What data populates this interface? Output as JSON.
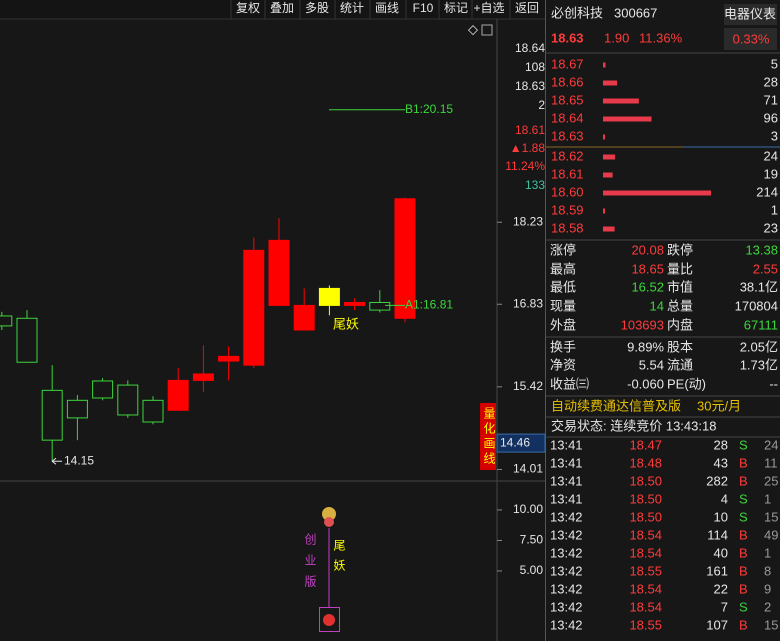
{
  "toolbar": [
    "复权",
    "叠加",
    "多股",
    "统计",
    "画线",
    "F10",
    "标记",
    "+自选",
    "返回"
  ],
  "kline": {
    "type": "candlestick",
    "ylim": [
      13.83,
      21.34
    ],
    "yticks": [
      18.23,
      16.83,
      15.42,
      14.01
    ],
    "info": [
      "18.64",
      "108",
      "18.63",
      "2",
      "18.61",
      "▲1.88",
      "11.24%",
      "133"
    ],
    "cursor_price": 14.46,
    "candles": [
      {
        "open": 16.63,
        "high": 16.7,
        "low": 16.39,
        "close": 16.46,
        "color": "#3cd63c"
      },
      {
        "open": 16.59,
        "high": 16.73,
        "low": 15.84,
        "close": 15.84,
        "color": "#3cd63c"
      },
      {
        "open": 15.36,
        "high": 15.79,
        "low": 14.15,
        "close": 14.51,
        "color": "#3cd63c"
      },
      {
        "open": 15.19,
        "high": 15.28,
        "low": 14.51,
        "close": 14.89,
        "color": "#3cd63c"
      },
      {
        "open": 15.52,
        "high": 15.57,
        "low": 15.19,
        "close": 15.23,
        "color": "#3cd63c"
      },
      {
        "open": 15.45,
        "high": 15.53,
        "low": 14.89,
        "close": 14.94,
        "color": "#3cd63c"
      },
      {
        "open": 15.19,
        "high": 15.26,
        "low": 14.78,
        "close": 14.82,
        "color": "#3cd63c"
      },
      {
        "open": 15.02,
        "high": 15.74,
        "low": 15.02,
        "close": 15.53,
        "color": "#ff0000"
      },
      {
        "open": 15.53,
        "high": 16.13,
        "low": 15.33,
        "close": 15.64,
        "color": "#ff0000"
      },
      {
        "open": 15.86,
        "high": 16.11,
        "low": 15.53,
        "close": 15.94,
        "color": "#ff0000"
      },
      {
        "open": 15.79,
        "high": 17.97,
        "low": 15.74,
        "close": 17.75,
        "color": "#ff0000"
      },
      {
        "open": 16.81,
        "high": 18.3,
        "low": 16.81,
        "close": 17.92,
        "color": "#ff0000"
      },
      {
        "open": 16.39,
        "high": 17.1,
        "low": 16.39,
        "close": 16.81,
        "color": "#ff0000"
      },
      {
        "open": 16.81,
        "high": 17.15,
        "low": 16.64,
        "close": 17.1,
        "color": "#ffff00"
      },
      {
        "open": 16.81,
        "high": 16.93,
        "low": 16.73,
        "close": 16.86,
        "color": "#ff0000"
      },
      {
        "open": 16.86,
        "high": 17.07,
        "low": 16.69,
        "close": 16.73,
        "color": "#3cd63c"
      },
      {
        "open": 16.59,
        "high": 18.65,
        "low": 16.52,
        "close": 18.63,
        "color": "#ff0000"
      }
    ],
    "lines": [
      {
        "label": "B1:20.15",
        "value": 20.15
      },
      {
        "label": "A1:16.81",
        "value": 16.81
      }
    ],
    "low_marker": 14.15,
    "tag": "尾妖",
    "side_button": "量化画线"
  },
  "indicator": {
    "ylim": [
      -0.74,
      12.21
    ],
    "yticks": [
      {
        "value": 10,
        "label": "10.00"
      },
      {
        "value": 7.5,
        "label": "7.50"
      },
      {
        "value": 5,
        "label": "5.00"
      }
    ],
    "board": "创业版",
    "tag": "尾妖"
  },
  "quote": {
    "name": "必创科技",
    "code": "300667",
    "sector": "电器仪表",
    "price": "18.63",
    "change": "1.90",
    "change_pct": "11.36%",
    "sector_pct": "0.33%"
  },
  "asks": [
    {
      "price": "18.67",
      "volume": 5
    },
    {
      "price": "18.66",
      "volume": 28
    },
    {
      "price": "18.65",
      "volume": 71
    },
    {
      "price": "18.64",
      "volume": 96
    },
    {
      "price": "18.63",
      "volume": 3
    }
  ],
  "bids": [
    {
      "price": "18.62",
      "volume": 24
    },
    {
      "price": "18.61",
      "volume": 19
    },
    {
      "price": "18.60",
      "volume": 214
    },
    {
      "price": "18.59",
      "volume": 1
    },
    {
      "price": "18.58",
      "volume": 23
    }
  ],
  "stats": [
    [
      [
        "涨停",
        "20.08"
      ],
      [
        "跌停",
        "13.38"
      ]
    ],
    [
      [
        "最高",
        "18.65"
      ],
      [
        "量比",
        "2.55"
      ]
    ],
    [
      [
        "最低",
        "16.52"
      ],
      [
        "市值",
        "38.1亿"
      ]
    ],
    [
      [
        "现量",
        "14"
      ],
      [
        "总量",
        "170804"
      ]
    ],
    [
      [
        "外盘",
        "103693"
      ],
      [
        "内盘",
        "67111"
      ]
    ],
    [
      [
        "换手",
        "9.89%"
      ],
      [
        "股本",
        "2.05亿"
      ]
    ],
    [
      [
        "净资",
        "5.54"
      ],
      [
        "流通",
        "1.73亿"
      ]
    ],
    [
      [
        "收益㈢",
        "-0.060"
      ],
      [
        "PE(动)",
        "--"
      ]
    ]
  ],
  "promo": {
    "text": "自动续费通达信普及版",
    "price": "30元/月"
  },
  "status": "交易状态: 连续竞价 13:43:18",
  "trades": [
    [
      "13:41",
      "18.47",
      "28",
      "S",
      "24"
    ],
    [
      "13:41",
      "18.48",
      "43",
      "B",
      "11"
    ],
    [
      "13:41",
      "18.50",
      "282",
      "B",
      "25"
    ],
    [
      "13:41",
      "18.50",
      "4",
      "S",
      "1"
    ],
    [
      "13:42",
      "18.50",
      "10",
      "S",
      "15"
    ],
    [
      "13:42",
      "18.54",
      "114",
      "B",
      "49"
    ],
    [
      "13:42",
      "18.54",
      "40",
      "B",
      "1"
    ],
    [
      "13:42",
      "18.55",
      "161",
      "B",
      "8"
    ],
    [
      "13:42",
      "18.54",
      "22",
      "B",
      "9"
    ],
    [
      "13:42",
      "18.54",
      "7",
      "S",
      "2"
    ],
    [
      "13:42",
      "18.55",
      "107",
      "B",
      "15"
    ]
  ]
}
